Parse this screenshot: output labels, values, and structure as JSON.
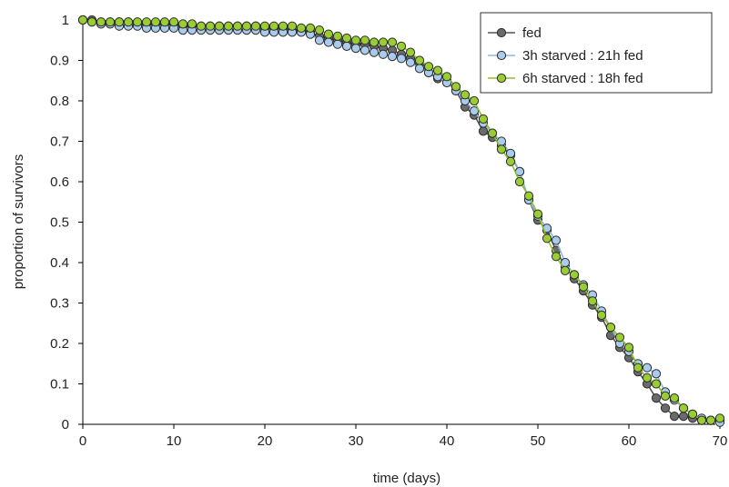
{
  "chart_data": {
    "type": "line",
    "xlabel": "time (days)",
    "ylabel": "proportion of survivors",
    "xlim": [
      0,
      70
    ],
    "ylim": [
      0,
      1
    ],
    "xticks": [
      0,
      10,
      20,
      30,
      40,
      50,
      60,
      70
    ],
    "yticks": [
      0,
      0.1,
      0.2,
      0.3,
      0.4,
      0.5,
      0.6,
      0.7,
      0.8,
      0.9,
      1
    ],
    "ytick_labels": [
      "0",
      "0.1",
      "0.2",
      "0.3",
      "0.4",
      "0.5",
      "0.6",
      "0.7",
      "0.8",
      "0.9",
      "1"
    ],
    "grid": false,
    "legend": "top-right",
    "x": [
      0,
      1,
      2,
      3,
      4,
      5,
      6,
      7,
      8,
      9,
      10,
      11,
      12,
      13,
      14,
      15,
      16,
      17,
      18,
      19,
      20,
      21,
      22,
      23,
      24,
      25,
      26,
      27,
      28,
      29,
      30,
      31,
      32,
      33,
      34,
      35,
      36,
      37,
      38,
      39,
      40,
      41,
      42,
      43,
      44,
      45,
      46,
      47,
      48,
      49,
      50,
      51,
      52,
      53,
      54,
      55,
      56,
      57,
      58,
      59,
      60,
      61,
      62,
      63,
      64,
      65,
      66,
      67,
      68,
      69,
      70
    ],
    "series": [
      {
        "name": "fed",
        "color": "#6b6b6b",
        "line_color": "#555555",
        "values": [
          1.0,
          1.0,
          0.995,
          0.995,
          0.995,
          0.995,
          0.99,
          0.99,
          0.99,
          0.99,
          0.99,
          0.985,
          0.985,
          0.985,
          0.985,
          0.985,
          0.985,
          0.985,
          0.985,
          0.985,
          0.98,
          0.98,
          0.98,
          0.975,
          0.975,
          0.97,
          0.96,
          0.955,
          0.95,
          0.945,
          0.94,
          0.94,
          0.935,
          0.93,
          0.925,
          0.915,
          0.905,
          0.89,
          0.87,
          0.855,
          0.85,
          0.825,
          0.785,
          0.765,
          0.725,
          0.71,
          0.69,
          0.665,
          0.625,
          0.555,
          0.505,
          0.48,
          0.43,
          0.39,
          0.36,
          0.33,
          0.295,
          0.265,
          0.22,
          0.19,
          0.165,
          0.13,
          0.1,
          0.065,
          0.04,
          0.02,
          0.02,
          0.015,
          0.01,
          0.01,
          0.01
        ]
      },
      {
        "name": "3h starved : 21h fed",
        "color": "#a9cbee",
        "line_color": "#8fb7e0",
        "values": [
          1.0,
          0.995,
          0.99,
          0.99,
          0.985,
          0.985,
          0.985,
          0.98,
          0.98,
          0.98,
          0.98,
          0.975,
          0.975,
          0.975,
          0.975,
          0.975,
          0.975,
          0.975,
          0.975,
          0.975,
          0.97,
          0.97,
          0.97,
          0.97,
          0.97,
          0.965,
          0.95,
          0.945,
          0.94,
          0.935,
          0.93,
          0.925,
          0.92,
          0.915,
          0.91,
          0.905,
          0.895,
          0.88,
          0.87,
          0.86,
          0.845,
          0.825,
          0.8,
          0.775,
          0.745,
          0.72,
          0.7,
          0.67,
          0.625,
          0.555,
          0.515,
          0.485,
          0.455,
          0.4,
          0.37,
          0.345,
          0.32,
          0.28,
          0.24,
          0.2,
          0.18,
          0.15,
          0.14,
          0.125,
          0.08,
          0.06,
          0.04,
          0.025,
          0.015,
          0.01,
          0.005
        ]
      },
      {
        "name": "6h starved : 18h fed",
        "color": "#9acd32",
        "line_color": "#8dbf2b",
        "values": [
          1.0,
          0.995,
          0.995,
          0.995,
          0.995,
          0.995,
          0.995,
          0.995,
          0.995,
          0.995,
          0.995,
          0.99,
          0.99,
          0.985,
          0.985,
          0.985,
          0.985,
          0.985,
          0.985,
          0.985,
          0.985,
          0.985,
          0.985,
          0.985,
          0.98,
          0.98,
          0.975,
          0.965,
          0.96,
          0.955,
          0.95,
          0.95,
          0.945,
          0.945,
          0.945,
          0.935,
          0.92,
          0.9,
          0.885,
          0.875,
          0.86,
          0.835,
          0.815,
          0.8,
          0.755,
          0.72,
          0.68,
          0.65,
          0.6,
          0.565,
          0.52,
          0.46,
          0.415,
          0.38,
          0.37,
          0.34,
          0.305,
          0.27,
          0.24,
          0.215,
          0.19,
          0.14,
          0.115,
          0.1,
          0.07,
          0.065,
          0.04,
          0.025,
          0.01,
          0.01,
          0.015
        ]
      }
    ]
  }
}
